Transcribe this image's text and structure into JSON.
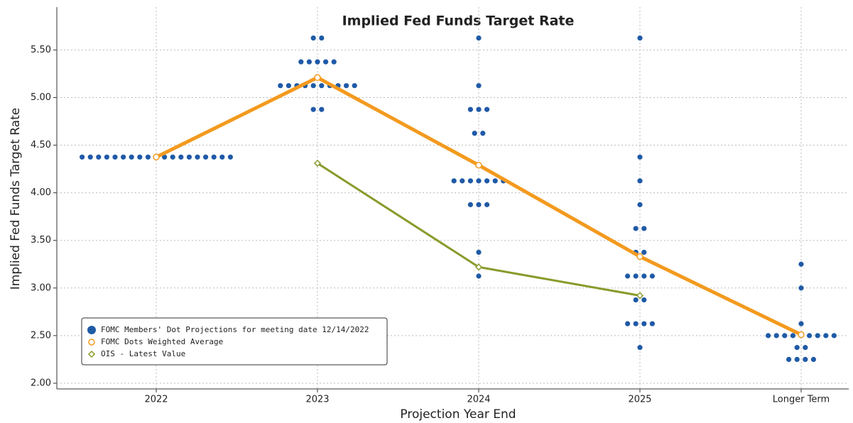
{
  "chart_data": {
    "type": "dot-plot",
    "title": "Implied Fed Funds Target Rate",
    "x_label": "Projection Year End",
    "y_label": "Implied Fed Funds Target Rate",
    "categories": [
      "2022",
      "2023",
      "2024",
      "2025",
      "Longer Term"
    ],
    "ylim": [
      1.94,
      5.95
    ],
    "yticks": [
      {
        "value": 2.0,
        "label": "2.00"
      },
      {
        "value": 2.5,
        "label": "2.50"
      },
      {
        "value": 3.0,
        "label": "3.00"
      },
      {
        "value": 3.5,
        "label": "3.50"
      },
      {
        "value": 4.0,
        "label": "4.00"
      },
      {
        "value": 4.5,
        "label": "4.50"
      },
      {
        "value": 5.0,
        "label": "5.00"
      },
      {
        "value": 5.5,
        "label": "5.50"
      }
    ],
    "grid": true,
    "legend": "lower left",
    "dots": {
      "name": "FOMC Members' Dot Projections for meeting date 12/14/2022",
      "color": "#1f5aa6",
      "values": [
        [
          4.375,
          4.375,
          4.375,
          4.375,
          4.375,
          4.375,
          4.375,
          4.375,
          4.375,
          4.375,
          4.375,
          4.375,
          4.375,
          4.375,
          4.375,
          4.375,
          4.375,
          4.375,
          4.375
        ],
        [
          5.625,
          5.625,
          5.375,
          5.375,
          5.375,
          5.375,
          5.375,
          5.125,
          5.125,
          5.125,
          5.125,
          5.125,
          5.125,
          5.125,
          5.125,
          5.125,
          5.125,
          4.875,
          4.875
        ],
        [
          5.625,
          5.125,
          4.875,
          4.875,
          4.875,
          4.625,
          4.625,
          4.125,
          4.125,
          4.125,
          4.125,
          4.125,
          4.125,
          4.125,
          3.875,
          3.875,
          3.875,
          3.375,
          3.125
        ],
        [
          5.625,
          4.375,
          4.125,
          3.875,
          3.625,
          3.625,
          3.375,
          3.375,
          3.125,
          3.125,
          3.125,
          3.125,
          2.875,
          2.875,
          2.625,
          2.625,
          2.625,
          2.625,
          2.375
        ],
        [
          3.25,
          3.0,
          2.625,
          2.5,
          2.5,
          2.5,
          2.5,
          2.5,
          2.5,
          2.5,
          2.5,
          2.5,
          2.375,
          2.375,
          2.25,
          2.25,
          2.25,
          2.25
        ]
      ]
    },
    "series": [
      {
        "name": "FOMC Dots Weighted Average",
        "color": "#f39a1e",
        "marker": "circle",
        "values": [
          4.375,
          5.21,
          4.29,
          3.33,
          2.51
        ]
      },
      {
        "name": "OIS - Latest Value",
        "color": "#8a9a2b",
        "marker": "diamond",
        "values": [
          null,
          4.31,
          3.22,
          2.92,
          null
        ]
      }
    ]
  }
}
